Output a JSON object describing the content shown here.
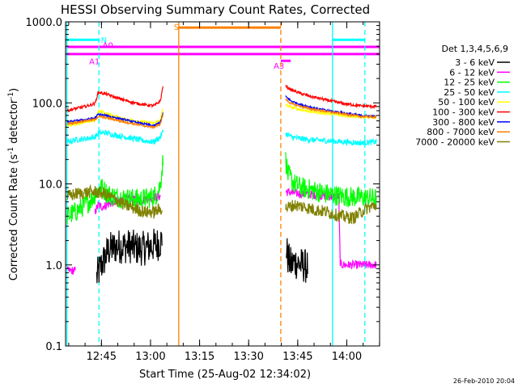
{
  "chart_data": {
    "type": "line",
    "title": "HESSI Observing Summary Count Rates, Corrected",
    "xlabel": "Start Time (25-Aug-02 12:34:02)",
    "ylabel_main": "Corrected Count Rate (s",
    "ylabel_sup1": "-1",
    "ylabel_mid": " detector",
    "ylabel_sup2": "-1",
    "ylabel_end": ")",
    "ylabel": "Corrected Count Rate (s-1 detector-1)",
    "y_scale": "log",
    "ylim": [
      0.1,
      1000
    ],
    "x_minutes_range": [
      0,
      96
    ],
    "yticks": [
      {
        "v": 0.1,
        "label": "0.1"
      },
      {
        "v": 1,
        "label": "1.0"
      },
      {
        "v": 10,
        "label": "10.0"
      },
      {
        "v": 100,
        "label": "100.0"
      },
      {
        "v": 1000,
        "label": "1000.0"
      }
    ],
    "xticks": [
      {
        "t": 10.97,
        "label": "12:45"
      },
      {
        "t": 25.97,
        "label": "13:00"
      },
      {
        "t": 40.97,
        "label": "13:15"
      },
      {
        "t": 55.97,
        "label": "13:30"
      },
      {
        "t": 70.97,
        "label": "13:45"
      },
      {
        "t": 85.97,
        "label": "14:00"
      }
    ],
    "legend_title": "Det 1,3,4,5,6,9",
    "legend_position": "right",
    "series": [
      {
        "name": "3 - 6 keV",
        "color": "#000000",
        "noise": 0.5,
        "segments": [
          {
            "t": [
              9.5,
              10,
              11,
              12,
              13,
              14,
              16,
              18,
              20,
              22,
              24,
              26,
              28,
              29.5
            ],
            "y": [
              0.7,
              0.8,
              1.0,
              1.2,
              1.5,
              1.6,
              1.7,
              1.7,
              1.7,
              1.6,
              1.6,
              1.7,
              1.8,
              2.0
            ]
          },
          {
            "t": [
              67.5,
              68,
              69,
              70,
              72,
              74
            ],
            "y": [
              1.6,
              1.2,
              1.0,
              1.1,
              1.0,
              0.95
            ]
          }
        ]
      },
      {
        "name": "6 - 12 keV",
        "color": "#ff00ff",
        "noise": 0.12,
        "segments": [
          {
            "t": [
              0.5,
              3
            ],
            "y": [
              0.85,
              0.85
            ]
          },
          {
            "t": [
              9,
              10,
              11,
              13,
              15,
              17,
              19,
              21,
              23,
              25,
              27,
              29
            ],
            "y": [
              4.5,
              5.5,
              5.2,
              5.6,
              6.0,
              6.3,
              6.8,
              6.4,
              6.2,
              6.6,
              6.9,
              7.0
            ]
          },
          {
            "t": [
              67.3,
              69,
              72,
              75,
              78,
              81,
              83.5
            ],
            "y": [
              8.0,
              7.8,
              7.5,
              7.4,
              7.2,
              7.0,
              7.0
            ]
          },
          {
            "t": [
              83.5,
              84,
              95
            ],
            "y": [
              7.0,
              1.0,
              1.0
            ]
          }
        ]
      },
      {
        "name": "12 - 25 keV",
        "color": "#00ff00",
        "noise": 0.3,
        "segments": [
          {
            "t": [
              0.5,
              3,
              6,
              8,
              9.5,
              11,
              13,
              15,
              17,
              20,
              23,
              26,
              28,
              29,
              29.8
            ],
            "y": [
              4.0,
              4.5,
              5.5,
              6.5,
              8.0,
              9.0,
              7.5,
              7.0,
              6.8,
              6.6,
              6.5,
              6.8,
              7.5,
              10,
              20
            ]
          },
          {
            "t": [
              67.3,
              68,
              70,
              72,
              75,
              80,
              85,
              90,
              95
            ],
            "y": [
              20,
              13,
              10,
              9,
              8.5,
              7.5,
              7.0,
              6.8,
              6.6
            ]
          }
        ]
      },
      {
        "name": "25 - 50 keV",
        "color": "#00ffff",
        "noise": 0.08,
        "segments": [
          {
            "t": [
              0.5,
              3,
              6,
              9,
              10,
              12,
              15,
              18,
              21,
              24,
              27,
              29,
              29.8
            ],
            "y": [
              33,
              35,
              36,
              38,
              42,
              43,
              40,
              38,
              36,
              34,
              33,
              38,
              45
            ]
          },
          {
            "t": [
              67.3,
              69,
              72,
              75,
              80,
              85,
              90,
              95
            ],
            "y": [
              42,
              38,
              36,
              35,
              34,
              33,
              32,
              33
            ]
          }
        ]
      },
      {
        "name": "50 - 100 keV",
        "color": "#ffff00",
        "noise": 0.04,
        "segments": [
          {
            "t": [
              0.5,
              3,
              6,
              9,
              10,
              12,
              15,
              18,
              21,
              24,
              27,
              29,
              29.8
            ],
            "y": [
              52,
              55,
              58,
              62,
              78,
              75,
              68,
              63,
              60,
              58,
              56,
              62,
              85
            ]
          },
          {
            "t": [
              67.3,
              69,
              72,
              75,
              80,
              85,
              90,
              95
            ],
            "y": [
              95,
              88,
              82,
              78,
              74,
              70,
              67,
              66
            ]
          }
        ]
      },
      {
        "name": "100 - 300 keV",
        "color": "#ff0000",
        "noise": 0.04,
        "segments": [
          {
            "t": [
              0.5,
              3,
              6,
              9,
              10,
              12,
              15,
              18,
              21,
              24,
              27,
              29,
              29.8
            ],
            "y": [
              80,
              85,
              90,
              98,
              135,
              130,
              118,
              108,
              100,
              95,
              92,
              105,
              165
            ]
          },
          {
            "t": [
              67.3,
              69,
              72,
              75,
              80,
              85,
              90,
              95
            ],
            "y": [
              160,
              145,
              130,
              120,
              108,
              98,
              92,
              90
            ]
          }
        ]
      },
      {
        "name": "300 - 800 keV",
        "color": "#0000ff",
        "noise": 0.03,
        "segments": [
          {
            "t": [
              0.5,
              3,
              6,
              9,
              10,
              12,
              15,
              18,
              21,
              24,
              27,
              29,
              29.8
            ],
            "y": [
              58,
              60,
              62,
              65,
              72,
              70,
              66,
              62,
              58,
              55,
              52,
              58,
              75
            ]
          },
          {
            "t": [
              67.3,
              69,
              72,
              75,
              80,
              85,
              90,
              95
            ],
            "y": [
              120,
              105,
              95,
              88,
              80,
              75,
              70,
              68
            ]
          }
        ]
      },
      {
        "name": "800 - 7000 keV",
        "color": "#ff8000",
        "noise": 0.03,
        "segments": [
          {
            "t": [
              0.5,
              3,
              6,
              9,
              10,
              12,
              15,
              18,
              21,
              24,
              27,
              29,
              29.8
            ],
            "y": [
              55,
              57,
              60,
              62,
              68,
              66,
              62,
              58,
              55,
              52,
              50,
              55,
              72
            ]
          },
          {
            "t": [
              67.3,
              69,
              72,
              75,
              80,
              85,
              90,
              95
            ],
            "y": [
              110,
              98,
              90,
              84,
              78,
              73,
              68,
              67
            ]
          }
        ]
      },
      {
        "name": "7000 - 20000 keV",
        "color": "#808000",
        "noise": 0.18,
        "segments": [
          {
            "t": [
              0.5,
              3,
              6,
              9,
              12,
              15,
              18,
              21,
              24,
              27,
              29.5
            ],
            "y": [
              7.0,
              7.5,
              7.8,
              8.0,
              7.5,
              6.5,
              5.5,
              5.0,
              4.5,
              4.5,
              5.0
            ]
          },
          {
            "t": [
              67.3,
              70,
              73,
              76,
              80,
              84,
              88,
              92,
              95
            ],
            "y": [
              5.0,
              5.5,
              5.2,
              4.8,
              4.5,
              4.0,
              3.8,
              5.0,
              5.5
            ]
          }
        ]
      }
    ],
    "vlines": [
      {
        "t": 0.4,
        "color": "#00ffff",
        "dashed": false
      },
      {
        "t": 10.2,
        "color": "#00ffff",
        "dashed": true
      },
      {
        "t": 34.6,
        "color": "#ff8000",
        "dashed": false
      },
      {
        "t": 65.8,
        "color": "#ff8000",
        "dashed": true
      },
      {
        "t": 81.6,
        "color": "#00ffff",
        "dashed": false
      },
      {
        "t": 91.5,
        "color": "#00ffff",
        "dashed": true
      }
    ],
    "bars": [
      {
        "t0": 0,
        "t1": 10.2,
        "value": 600,
        "color": "#00ffff",
        "label": "N",
        "label_t": 10.8,
        "label_value": 600,
        "label_color": "#00ffff"
      },
      {
        "t0": 81.6,
        "t1": 91.5,
        "value": 600,
        "color": "#00ffff"
      },
      {
        "t0": 0,
        "t1": 96,
        "value": 400,
        "color": "#ff00ff",
        "label": "A1",
        "label_t": 7.2,
        "label_value": 330,
        "label_color": "#ff00ff"
      },
      {
        "t0": 0,
        "t1": 96,
        "value": 490,
        "color": "#ff00ff",
        "label": "A0",
        "label_t": 11.3,
        "label_value": 520,
        "label_color": "#ff00ff"
      },
      {
        "t0": 34.6,
        "t1": 65.8,
        "value": 850,
        "color": "#ff8000",
        "label": "S",
        "label_t": 33.1,
        "label_value": 870,
        "label_color": "#ff8000"
      },
      {
        "t0": 65.8,
        "t1": 68.8,
        "value": 330,
        "color": "#ff00ff",
        "label": "A3",
        "label_t": 63.6,
        "label_value": 290,
        "label_color": "#ff00ff"
      }
    ]
  },
  "footer_timestamp": "26-Feb-2010 20:04"
}
